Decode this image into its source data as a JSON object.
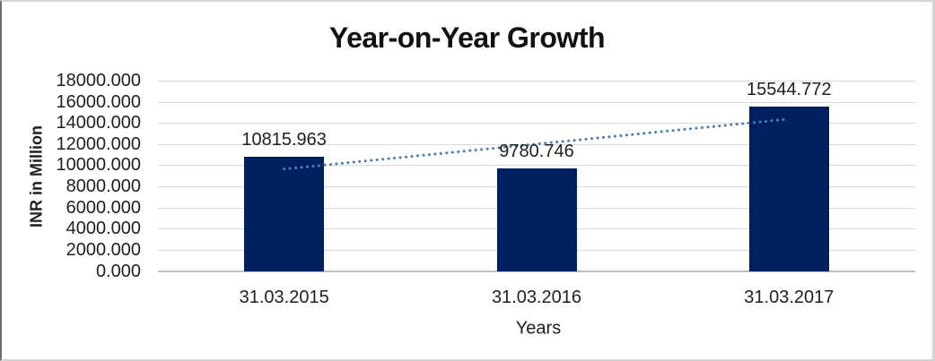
{
  "chart_data": {
    "type": "bar",
    "title": "Year-on-Year Growth",
    "xlabel": "Years",
    "ylabel": "INR in Million",
    "categories": [
      "31.03.2015",
      "31.03.2016",
      "31.03.2017"
    ],
    "values": [
      10815.963,
      9780.746,
      15544.772
    ],
    "data_labels": [
      "10815.963",
      "9780.746",
      "15544.772"
    ],
    "ylim": [
      0,
      18000
    ],
    "ytick_step": 2000,
    "ytick_decimals": 3,
    "grid": "horizontal",
    "legend": "none",
    "bar_color": "#002060",
    "gridline_color": "#d9d9d9",
    "axis_line_color": "#bfbfbf",
    "text_color": "#1f1f1f",
    "trendline": {
      "type": "linear",
      "style": "dotted",
      "color": "#4a7ebb"
    }
  }
}
